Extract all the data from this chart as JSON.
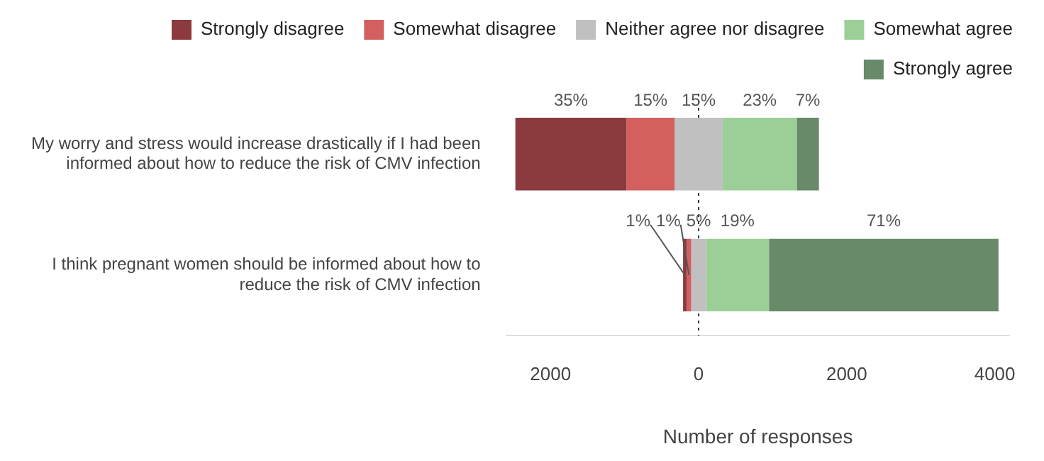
{
  "chart_data": {
    "type": "bar",
    "orientation": "horizontal",
    "xlabel": "Number of responses",
    "categories": [
      "My worry and stress would increase drastically if I had been informed about how to reduce the risk of CMV infection",
      "I think pregnant women should be informed about how to reduce the risk of CMV infection"
    ],
    "series": [
      {
        "name": "Strongly disagree",
        "color": "#8b3a3e",
        "base": [
          -2475,
          -210
        ],
        "values": [
          1500,
          50
        ]
      },
      {
        "name": "Somewhat disagree",
        "color": "#d35f5f",
        "base": [
          -975,
          -160
        ],
        "values": [
          650,
          60
        ]
      },
      {
        "name": "Neither agree nor disagree",
        "color": "#c0c0c0",
        "base": [
          -325,
          -100
        ],
        "values": [
          650,
          200
        ]
      },
      {
        "name": "Somewhat agree",
        "color": "#9ccf98",
        "base": [
          325,
          100
        ],
        "values": [
          1000,
          850
        ]
      },
      {
        "name": "Strongly agree",
        "color": "#688a68",
        "base": [
          1325,
          950
        ],
        "values": [
          300,
          3100
        ]
      }
    ],
    "annotations": [
      "35%",
      "15%",
      "15%",
      "23%",
      "7%",
      {
        "text": "1%",
        "x": -185,
        "y": "I think pregnant women should be informed about how to reduce the risk of CMV infection"
      },
      {
        "text": "1%",
        "x": -130,
        "y": "I think pregnant women should be informed about how to reduce the risk of CMV infection"
      },
      "5%",
      "19%",
      "71%"
    ],
    "xlim": [
      -2600,
      4200
    ],
    "xticks": [
      {
        "value": -2000,
        "label": "2000"
      },
      0,
      2000,
      4000
    ],
    "ref_lines": [
      {
        "axis": "x",
        "value": 0,
        "line_style": "dotted",
        "color": "#333333"
      }
    ],
    "grid": false,
    "legend": "top"
  }
}
